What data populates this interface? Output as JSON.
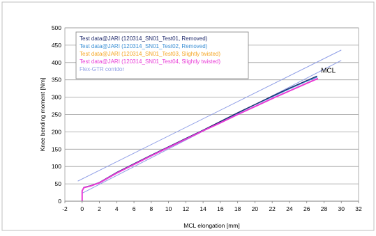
{
  "chart_data": {
    "type": "line",
    "xlabel": "MCL elongation [mm]",
    "ylabel": "Knee bending moment [Nm]",
    "xlim": [
      -2,
      32
    ],
    "ylim": [
      0,
      500
    ],
    "xticks": [
      -2,
      0,
      2,
      4,
      6,
      8,
      10,
      12,
      14,
      16,
      18,
      20,
      22,
      24,
      26,
      28,
      30,
      32
    ],
    "yticks": [
      0,
      50,
      100,
      150,
      200,
      250,
      300,
      350,
      400,
      450,
      500
    ],
    "grid": "horizontal",
    "legend_position": "top-left",
    "annotations": [
      {
        "text": "MCL",
        "x": 28.5,
        "y": 370
      }
    ],
    "series": [
      {
        "name": "Test data@JARI (120314_SN01_Test01, Removed)",
        "color": "#1f2a6b",
        "width": 1.3,
        "x": [
          0,
          0,
          0.2,
          1,
          2,
          4,
          6,
          8,
          10,
          12,
          14,
          16,
          18,
          20,
          22,
          24,
          26,
          27.2
        ],
        "y": [
          0,
          30,
          40,
          45,
          54,
          83,
          108,
          133,
          157,
          181,
          205,
          230,
          255,
          279,
          303,
          326,
          348,
          361
        ]
      },
      {
        "name": "Test data@JARI (120314_SN01_Test02, Removed)",
        "color": "#3b8fd4",
        "width": 1.3,
        "x": [
          0,
          0,
          0.2,
          1,
          2,
          4,
          6,
          8,
          10,
          12,
          14,
          16,
          18,
          20,
          22,
          24,
          26,
          27.2
        ],
        "y": [
          0,
          30,
          40,
          45,
          54,
          83,
          108,
          133,
          157,
          181,
          205,
          229,
          254,
          278,
          301,
          324,
          346,
          358
        ]
      },
      {
        "name": "Test data@JARI (120314_SN01_Test03, Slightly twisted)",
        "color": "#f5a623",
        "width": 1.3,
        "x": [
          0,
          0,
          0.2,
          1,
          2,
          4,
          6,
          8,
          10,
          12,
          14,
          16,
          18,
          20,
          22,
          24,
          26,
          27.3
        ],
        "y": [
          0,
          30,
          40,
          44,
          53,
          81,
          106,
          131,
          155,
          179,
          203,
          226,
          250,
          273,
          296,
          318,
          341,
          354
        ]
      },
      {
        "name": "Test data@JARI (120314_SN01_Test04, Slightly twisted)",
        "color": "#e83ad6",
        "width": 2,
        "x": [
          0,
          0,
          0.2,
          1,
          2,
          4,
          6,
          8,
          10,
          12,
          14,
          16,
          18,
          20,
          22,
          24,
          26,
          27.3
        ],
        "y": [
          0,
          30,
          39,
          44,
          53,
          81,
          106,
          131,
          155,
          179,
          203,
          226,
          250,
          273,
          296,
          318,
          340,
          354
        ]
      },
      {
        "name": "Flex-GTR corridor",
        "color": "#8f9ee6",
        "width": 1,
        "x": [
          -0.5,
          30
        ],
        "y": [
          58,
          436
        ]
      },
      {
        "name": "",
        "color": "#8f9ee6",
        "width": 1,
        "x": [
          0,
          30
        ],
        "y": [
          23,
          406
        ]
      }
    ]
  }
}
